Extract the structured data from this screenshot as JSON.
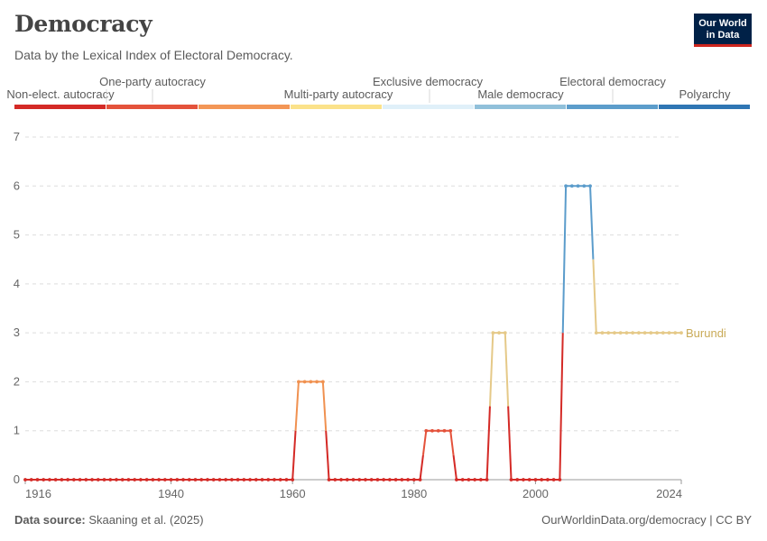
{
  "header": {
    "title": "Democracy",
    "subtitle": "Data by the Lexical Index of Electoral Democracy.",
    "logo_line1": "Our World",
    "logo_line2": "in Data"
  },
  "footer": {
    "source_label": "Data source:",
    "source_text": "Skaaning et al. (2025)",
    "right_text": "OurWorldinData.org/democracy | CC BY"
  },
  "chart_data": {
    "type": "line",
    "title": "Democracy",
    "subtitle": "Data by the Lexical Index of Electoral Democracy.",
    "xlabel": "",
    "ylabel": "",
    "xlim": [
      1916,
      2024
    ],
    "ylim": [
      0,
      7
    ],
    "x_ticks": [
      1916,
      1940,
      1960,
      1980,
      2000,
      2024
    ],
    "y_ticks": [
      0,
      1,
      2,
      3,
      4,
      5,
      6,
      7
    ],
    "grid": "horizontal dashed",
    "legend_position": "top",
    "legend": [
      {
        "label": "Non-elect. autocracy",
        "color": "#d42a26"
      },
      {
        "label": "One-party autocracy",
        "color": "#e4523b"
      },
      {
        "label": "Multi-party autocracy",
        "color": "#f39656"
      },
      {
        "label": "Exclusive democracy",
        "color": "#fbe28a"
      },
      {
        "label": "Male democracy",
        "color": "#e0f0f9"
      },
      {
        "label": "Electoral democracy",
        "color": "#90c0da"
      },
      {
        "label": "Polyarchy",
        "color": "#5c9dcb"
      },
      {
        "label": "",
        "color": "#2f76b4"
      }
    ],
    "level_colors": [
      "#d42a26",
      "#e4523b",
      "#f09150",
      "#e5c988",
      "#cfe5f0",
      "#86b6d6",
      "#5b9ccb",
      "#2f76b4"
    ],
    "series": [
      {
        "name": "Burundi",
        "label_color": "#c9aa57",
        "segments": [
          {
            "start": 1916,
            "end": 1960,
            "value": 0
          },
          {
            "start": 1961,
            "end": 1965,
            "value": 2
          },
          {
            "start": 1966,
            "end": 1981,
            "value": 0
          },
          {
            "start": 1982,
            "end": 1986,
            "value": 1
          },
          {
            "start": 1987,
            "end": 1992,
            "value": 0
          },
          {
            "start": 1993,
            "end": 1995,
            "value": 3
          },
          {
            "start": 1996,
            "end": 2004,
            "value": 0
          },
          {
            "start": 2005,
            "end": 2009,
            "value": 6
          },
          {
            "start": 2010,
            "end": 2024,
            "value": 3
          }
        ]
      }
    ]
  }
}
